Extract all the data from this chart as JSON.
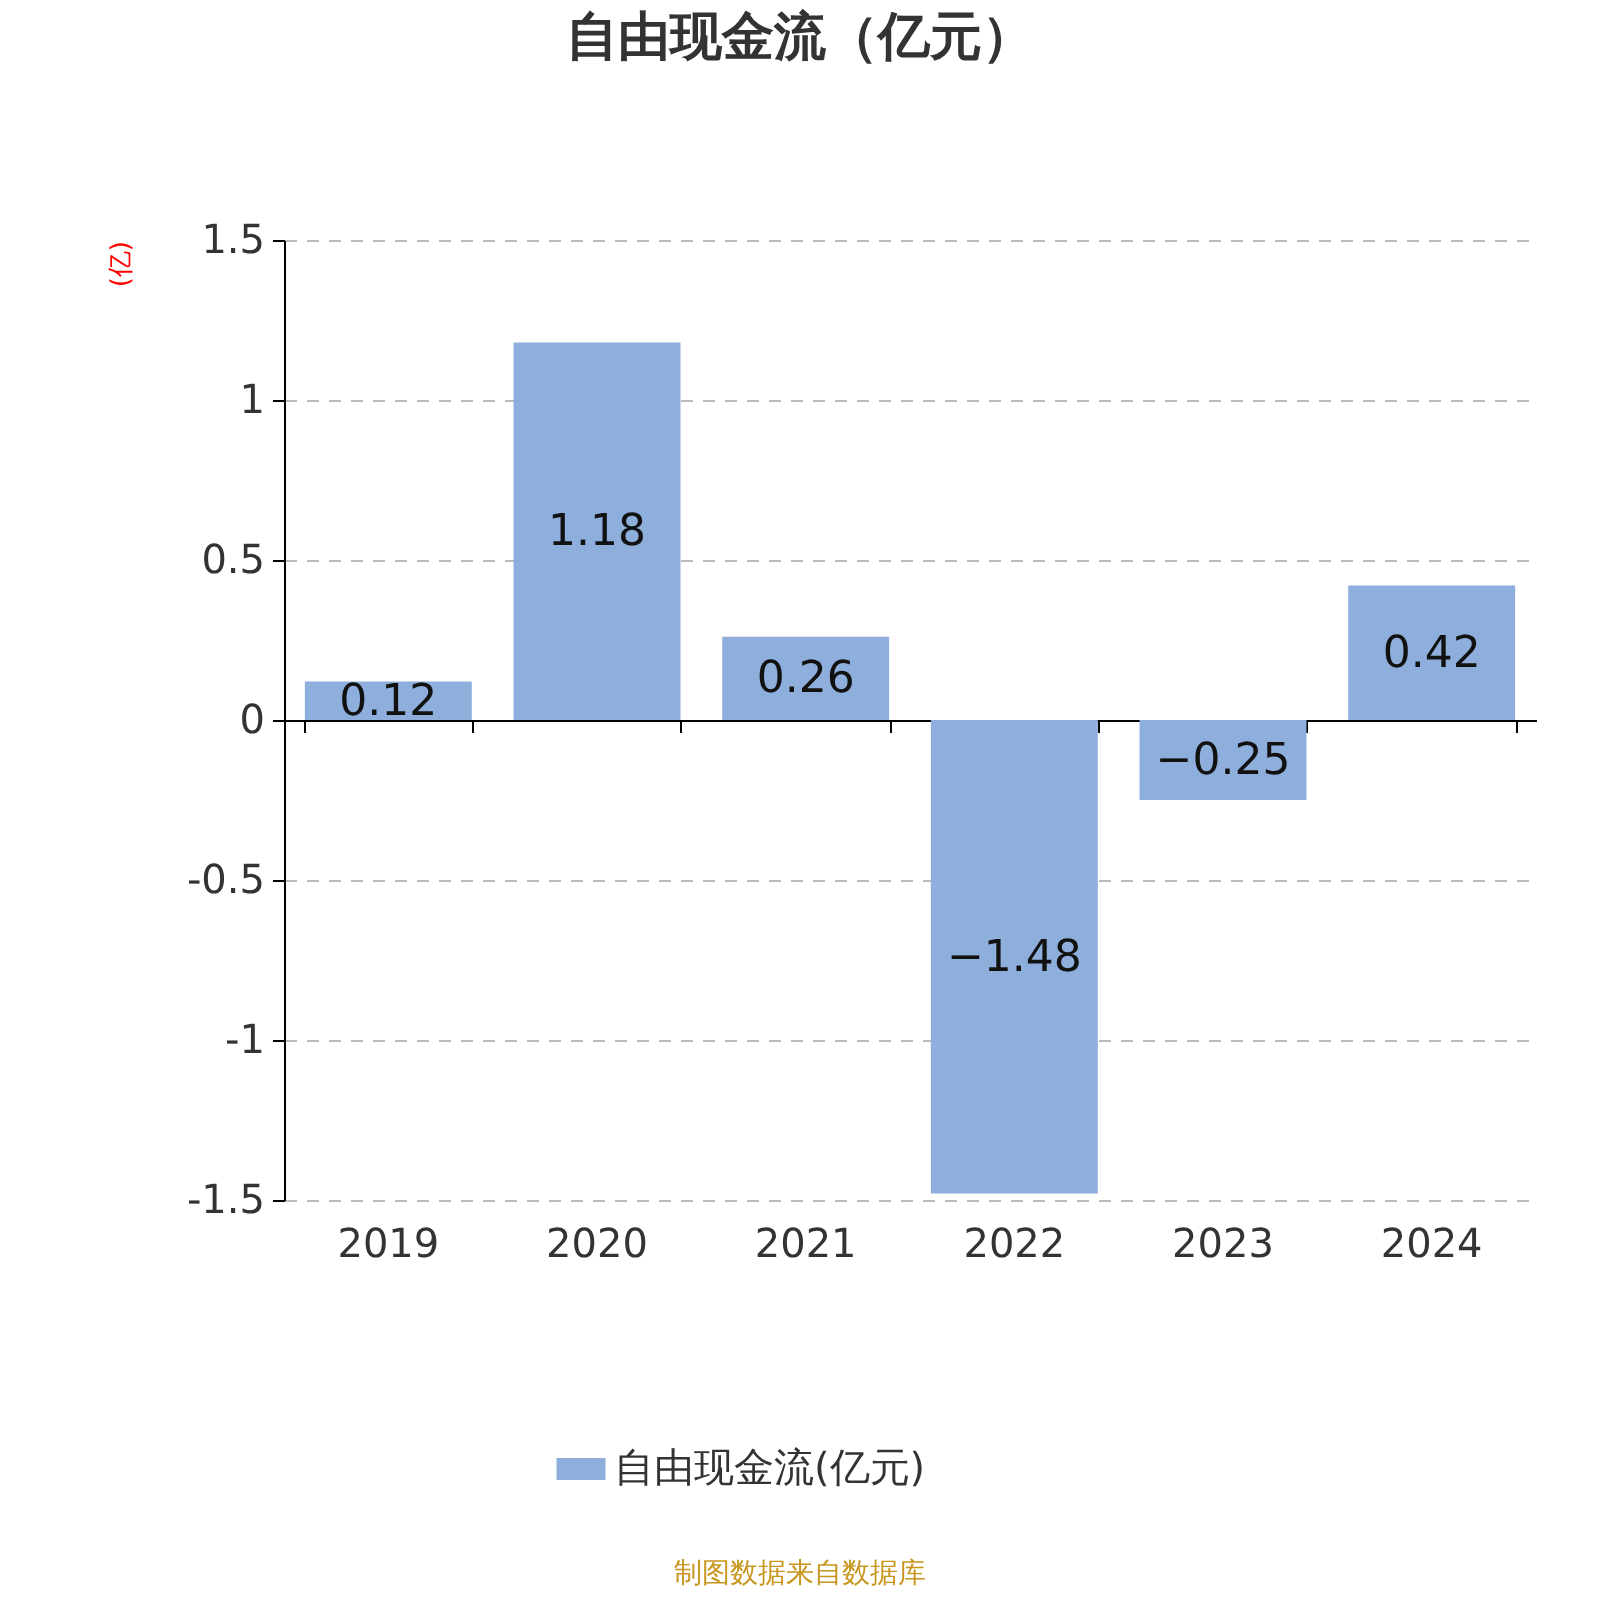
{
  "chart_data": {
    "type": "bar",
    "title": "自由现金流（亿元）",
    "ylabel": "(亿)",
    "categories": [
      "2019",
      "2020",
      "2021",
      "2022",
      "2023",
      "2024"
    ],
    "series": [
      {
        "name": "自由现金流(亿元)",
        "color": "#8eaedb",
        "values": [
          0.12,
          1.18,
          0.26,
          -1.48,
          -0.25,
          0.42
        ]
      }
    ],
    "ylim": [
      -1.5,
      1.5
    ],
    "yticks": [
      -1.5,
      -1,
      -0.5,
      0,
      0.5,
      1,
      1.5
    ],
    "grid": "y",
    "legend": "bottom",
    "data_labels": true,
    "annotations": [
      "制图数据来自数据库"
    ]
  }
}
